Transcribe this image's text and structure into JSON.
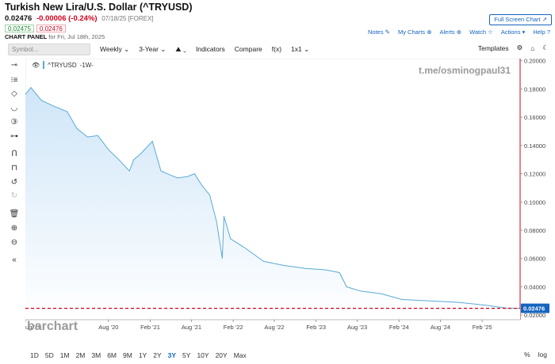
{
  "header": {
    "title": "Turkish New Lira/U.S. Dollar (^TRYUSD)",
    "last": "0.02476",
    "change": "-0.00006 (-0.24%)",
    "meta": "07/18/25 [FOREX]",
    "bid": "0.02475",
    "ask": "0.02476",
    "panel_label": "CHART PANEL",
    "panel_date": "for Fri, Jul 18th, 2025",
    "fullscreen": "Full Screen Chart ↗"
  },
  "toplinks": {
    "notes": "Notes ✎",
    "mycharts": "My Charts ⊕",
    "alerts": "Alerts ⊕",
    "watch": "Watch ☆",
    "actions": "Actions ▾",
    "help": "Help ?"
  },
  "toolbar": {
    "symbol_placeholder": "Symbol...",
    "interval": "Weekly ⌄",
    "period": "3-Year ⌄",
    "chart_type": "⛰ ⌄",
    "indicators": "Indicators",
    "compare": "Compare",
    "fx": "f(x)",
    "layout": "1x1 ⌄",
    "templates": "Templates",
    "settings_icon": "⚙",
    "draw_icon": "⌂",
    "dark_icon": "☾"
  },
  "left_tools": [
    "⊸",
    "⁝≡",
    "◇",
    "◡",
    "③",
    "⊶",
    "Ո",
    "⊓",
    "↺",
    "↻",
    "🗑",
    "⊕",
    "⊖",
    "«"
  ],
  "legend": {
    "eye": "👁",
    "symbol": "^TRYUSD",
    "interval": "-1W-"
  },
  "watermarks": {
    "telegram": "t.me/osminogpaul31",
    "brand": "barchart"
  },
  "bottombar": {
    "ranges": [
      "1D",
      "5D",
      "1M",
      "2M",
      "3M",
      "6M",
      "9M",
      "1Y",
      "2Y",
      "3Y",
      "5Y",
      "10Y",
      "20Y",
      "Max"
    ],
    "active_range": "3Y",
    "pct": "%",
    "log": "log"
  },
  "colors": {
    "line": "#5aaad6",
    "fill_top": "#cfe6f8",
    "fill_bottom": "#ffffff",
    "last_line": "#d0021b",
    "price_tag_bg": "#1565c0"
  },
  "chart_data": {
    "type": "area",
    "title": "",
    "xlabel": "",
    "ylabel": "",
    "ylim": [
      0.0167,
      0.2015
    ],
    "last_price": 0.02476,
    "last_label": "0.02476",
    "y_ticks": [
      0.02,
      0.04,
      0.06,
      0.08,
      0.1,
      0.12,
      0.14,
      0.16,
      0.18,
      0.2
    ],
    "y_tick_labels": [
      "0.02000",
      "0.04000",
      "0.06000",
      "0.08000",
      "0.10000",
      "0.12000",
      "0.14000",
      "0.16000",
      "0.18000",
      "0.20000"
    ],
    "x_ticks": [
      {
        "label": "ug '19",
        "date": "2019-08-01"
      },
      {
        "label": "Aug '20",
        "date": "2020-08-01"
      },
      {
        "label": "Feb '21",
        "date": "2021-02-01"
      },
      {
        "label": "Aug '21",
        "date": "2021-08-01"
      },
      {
        "label": "Feb '22",
        "date": "2022-02-01"
      },
      {
        "label": "Aug '22",
        "date": "2022-08-01"
      },
      {
        "label": "Feb '23",
        "date": "2023-02-01"
      },
      {
        "label": "Aug '23",
        "date": "2023-08-01"
      },
      {
        "label": "Feb '24",
        "date": "2024-02-01"
      },
      {
        "label": "Aug '24",
        "date": "2024-08-01"
      },
      {
        "label": "Feb '25",
        "date": "2025-02-01"
      }
    ],
    "x_range": [
      "2019-08-01",
      "2025-07-18"
    ],
    "series": [
      {
        "points": [
          {
            "date": "2019-08-01",
            "value": 0.176
          },
          {
            "date": "2019-08-25",
            "value": 0.181
          },
          {
            "date": "2019-10-10",
            "value": 0.172
          },
          {
            "date": "2019-12-01",
            "value": 0.168
          },
          {
            "date": "2020-02-01",
            "value": 0.164
          },
          {
            "date": "2020-03-15",
            "value": 0.152
          },
          {
            "date": "2020-05-01",
            "value": 0.146
          },
          {
            "date": "2020-06-15",
            "value": 0.147
          },
          {
            "date": "2020-08-01",
            "value": 0.137
          },
          {
            "date": "2020-09-15",
            "value": 0.13
          },
          {
            "date": "2020-11-01",
            "value": 0.122
          },
          {
            "date": "2020-11-20",
            "value": 0.13
          },
          {
            "date": "2020-12-20",
            "value": 0.134
          },
          {
            "date": "2021-02-10",
            "value": 0.143
          },
          {
            "date": "2021-03-20",
            "value": 0.122
          },
          {
            "date": "2021-05-01",
            "value": 0.119
          },
          {
            "date": "2021-06-01",
            "value": 0.117
          },
          {
            "date": "2021-07-15",
            "value": 0.118
          },
          {
            "date": "2021-08-15",
            "value": 0.12
          },
          {
            "date": "2021-09-15",
            "value": 0.112
          },
          {
            "date": "2021-10-20",
            "value": 0.105
          },
          {
            "date": "2021-11-20",
            "value": 0.086
          },
          {
            "date": "2021-12-15",
            "value": 0.06
          },
          {
            "date": "2021-12-22",
            "value": 0.09
          },
          {
            "date": "2022-01-20",
            "value": 0.074
          },
          {
            "date": "2022-03-20",
            "value": 0.068
          },
          {
            "date": "2022-06-15",
            "value": 0.058
          },
          {
            "date": "2022-09-15",
            "value": 0.055
          },
          {
            "date": "2022-12-15",
            "value": 0.053
          },
          {
            "date": "2023-03-15",
            "value": 0.052
          },
          {
            "date": "2023-05-15",
            "value": 0.05
          },
          {
            "date": "2023-06-15",
            "value": 0.04
          },
          {
            "date": "2023-08-15",
            "value": 0.037
          },
          {
            "date": "2023-11-15",
            "value": 0.035
          },
          {
            "date": "2024-02-15",
            "value": 0.031
          },
          {
            "date": "2024-06-15",
            "value": 0.03
          },
          {
            "date": "2024-10-15",
            "value": 0.029
          },
          {
            "date": "2025-02-15",
            "value": 0.027
          },
          {
            "date": "2025-05-15",
            "value": 0.025
          },
          {
            "date": "2025-07-18",
            "value": 0.02476
          }
        ]
      }
    ]
  }
}
